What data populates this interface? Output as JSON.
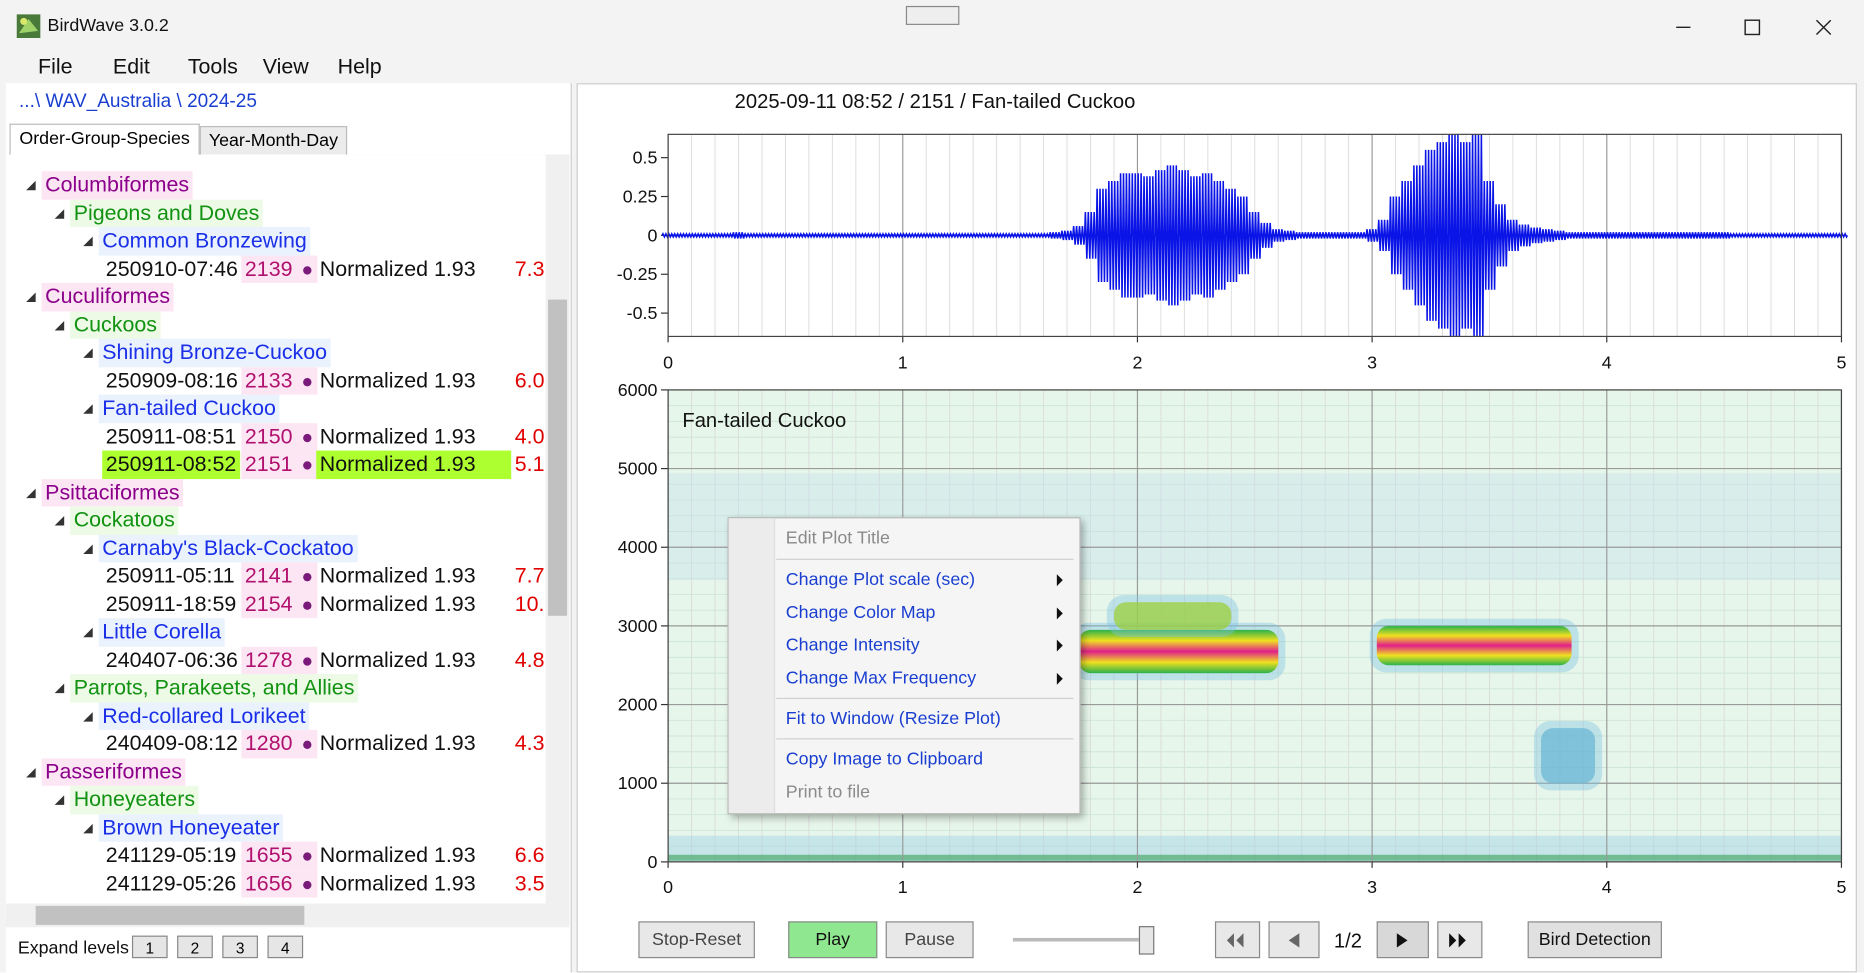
{
  "window": {
    "title": "BirdWave 3.0.2"
  },
  "menu": [
    "File",
    "Edit",
    "Tools",
    "View",
    "Help"
  ],
  "breadcrumb": "...\\ WAV_Australia \\ 2024-25",
  "tabs": [
    "Order-Group-Species",
    "Year-Month-Day"
  ],
  "tree": {
    "orders": [
      {
        "name": "Columbiformes",
        "groups": [
          {
            "name": "Pigeons and Doves",
            "species": [
              {
                "name": "Common Bronzewing",
                "recordings": [
                  {
                    "date": "250910-07:46",
                    "id": "2139",
                    "method": "Normalized 1.93",
                    "score": "7.3"
                  }
                ]
              }
            ]
          }
        ]
      },
      {
        "name": "Cuculiformes",
        "groups": [
          {
            "name": "Cuckoos",
            "species": [
              {
                "name": "Shining Bronze-Cuckoo",
                "recordings": [
                  {
                    "date": "250909-08:16",
                    "id": "2133",
                    "method": "Normalized 1.93",
                    "score": "6.0"
                  }
                ]
              },
              {
                "name": "Fan-tailed Cuckoo",
                "recordings": [
                  {
                    "date": "250911-08:51",
                    "id": "2150",
                    "method": "Normalized 1.93",
                    "score": "4.0"
                  },
                  {
                    "date": "250911-08:52",
                    "id": "2151",
                    "method": "Normalized 1.93",
                    "score": "5.1",
                    "selected": true
                  }
                ]
              }
            ]
          }
        ]
      },
      {
        "name": "Psittaciformes",
        "groups": [
          {
            "name": "Cockatoos",
            "species": [
              {
                "name": "Carnaby's Black-Cockatoo",
                "recordings": [
                  {
                    "date": "250911-05:11",
                    "id": "2141",
                    "method": "Normalized 1.93",
                    "score": "7.7"
                  },
                  {
                    "date": "250911-18:59",
                    "id": "2154",
                    "method": "Normalized 1.93",
                    "score": "10."
                  }
                ]
              },
              {
                "name": "Little Corella",
                "recordings": [
                  {
                    "date": "240407-06:36",
                    "id": "1278",
                    "method": "Normalized 1.93",
                    "score": "4.8"
                  }
                ]
              }
            ]
          },
          {
            "name": "Parrots, Parakeets, and Allies",
            "species": [
              {
                "name": "Red-collared Lorikeet",
                "recordings": [
                  {
                    "date": "240409-08:12",
                    "id": "1280",
                    "method": "Normalized 1.93",
                    "score": "4.3"
                  }
                ]
              }
            ]
          }
        ]
      },
      {
        "name": "Passeriformes",
        "groups": [
          {
            "name": "Honeyeaters",
            "species": [
              {
                "name": "Brown Honeyeater",
                "recordings": [
                  {
                    "date": "241129-05:19",
                    "id": "1655",
                    "method": "Normalized 1.93",
                    "score": "6.6"
                  },
                  {
                    "date": "241129-05:26",
                    "id": "1656",
                    "method": "Normalized 1.93",
                    "score": "3.5"
                  }
                ]
              }
            ]
          }
        ]
      }
    ]
  },
  "expand_levels": {
    "label": "Expand levels",
    "buttons": [
      "1",
      "2",
      "3",
      "4"
    ]
  },
  "plot_header": "2025-09-11 08:52 / 2151 / Fan-tailed Cuckoo",
  "chart_data": [
    {
      "type": "line",
      "xlim": [
        0,
        5
      ],
      "xticks": [
        0,
        1,
        2,
        3,
        4,
        5
      ],
      "ylim": [
        -0.65,
        0.65
      ],
      "yticks": [
        0.5,
        0.25,
        0,
        -0.25,
        -0.5
      ],
      "x": [
        0,
        0.05,
        0.1,
        0.15,
        0.2,
        0.25,
        0.3,
        0.35,
        0.4,
        0.45,
        0.5,
        0.55,
        0.6,
        0.65,
        0.7,
        0.75,
        0.8,
        0.85,
        0.9,
        0.95,
        1,
        1.05,
        1.1,
        1.15,
        1.2,
        1.25,
        1.3,
        1.35,
        1.4,
        1.45,
        1.5,
        1.55,
        1.6,
        1.65,
        1.7,
        1.75,
        1.8,
        1.85,
        1.9,
        1.95,
        2,
        2.05,
        2.1,
        2.15,
        2.2,
        2.25,
        2.3,
        2.35,
        2.4,
        2.45,
        2.5,
        2.55,
        2.6,
        2.65,
        2.7,
        2.75,
        2.8,
        2.85,
        2.9,
        2.95,
        3,
        3.05,
        3.1,
        3.15,
        3.2,
        3.25,
        3.3,
        3.35,
        3.4,
        3.45,
        3.5,
        3.55,
        3.6,
        3.65,
        3.7,
        3.75,
        3.8,
        3.85,
        3.9,
        3.95,
        4,
        4.05,
        4.1,
        4.15,
        4.2,
        4.25,
        4.3,
        4.35,
        4.4,
        4.45,
        4.5,
        4.55,
        4.6,
        4.65,
        4.7,
        4.75,
        4.8,
        4.85,
        4.9,
        4.95,
        5
      ],
      "series": [
        {
          "color": "#0a14e6",
          "values": [
            0.01,
            0.01,
            0.01,
            0.01,
            0.01,
            0.01,
            0.02,
            0.01,
            0.01,
            0.01,
            0.01,
            0.01,
            0.01,
            0.01,
            0.01,
            0.01,
            0.01,
            0.01,
            0.01,
            0.01,
            0.01,
            0.01,
            0.01,
            0.01,
            0.01,
            0.01,
            0.01,
            0.01,
            0.01,
            0.01,
            0.01,
            0.01,
            0.01,
            0.02,
            0.03,
            0.06,
            0.15,
            0.3,
            0.35,
            0.4,
            0.4,
            0.38,
            0.42,
            0.45,
            0.42,
            0.38,
            0.4,
            0.35,
            0.3,
            0.25,
            0.15,
            0.08,
            0.04,
            0.03,
            0.02,
            0.02,
            0.02,
            0.02,
            0.02,
            0.02,
            0.04,
            0.1,
            0.25,
            0.35,
            0.45,
            0.55,
            0.6,
            0.65,
            0.6,
            0.65,
            0.35,
            0.2,
            0.1,
            0.07,
            0.05,
            0.04,
            0.03,
            0.02,
            0.02,
            0.02,
            0.02,
            0.02,
            0.02,
            0.02,
            0.02,
            0.02,
            0.02,
            0.02,
            0.02,
            0.02,
            0.02,
            0.01,
            0.01,
            0.01,
            0.01,
            0.01,
            0.01,
            0.01,
            0.01,
            0.01,
            0.01
          ]
        }
      ],
      "grid": true
    },
    {
      "type": "spectrogram",
      "title": "Fan-tailed Cuckoo",
      "xlim": [
        0,
        5
      ],
      "xticks": [
        0,
        1,
        2,
        3,
        4,
        5
      ],
      "ylim": [
        0,
        6000
      ],
      "yticks": [
        0,
        1000,
        2000,
        3000,
        4000,
        5000,
        6000
      ],
      "regions": [
        {
          "x": [
            1.75,
            2.6
          ],
          "y": [
            2400,
            2950
          ],
          "color": "#e0208a"
        },
        {
          "x": [
            3.02,
            3.85
          ],
          "y": [
            2500,
            3000
          ],
          "color": "#e0208a"
        },
        {
          "x": [
            1.9,
            2.4
          ],
          "y": [
            2950,
            3300
          ],
          "color": "#9ccf3a"
        },
        {
          "x": [
            3.72,
            3.95
          ],
          "y": [
            1000,
            1700
          ],
          "color": "#6bb7d6"
        }
      ],
      "background": "#e6f6ea",
      "grid": true
    }
  ],
  "context_menu": [
    {
      "text": "Edit Plot Title",
      "disabled": true
    },
    {
      "text": "Change Plot scale (sec)",
      "submenu": true
    },
    {
      "text": "Change Color Map",
      "submenu": true
    },
    {
      "text": "Change Intensity",
      "submenu": true
    },
    {
      "text": "Change Max Frequency",
      "submenu": true
    },
    {
      "text": "Fit to Window (Resize Plot)"
    },
    {
      "text": "Copy Image to Clipboard"
    },
    {
      "text": "Print to file",
      "disabled": true
    }
  ],
  "controls": {
    "stop": "Stop-Reset",
    "play": "Play",
    "pause": "Pause",
    "page": "1/2",
    "detect": "Bird Detection"
  }
}
